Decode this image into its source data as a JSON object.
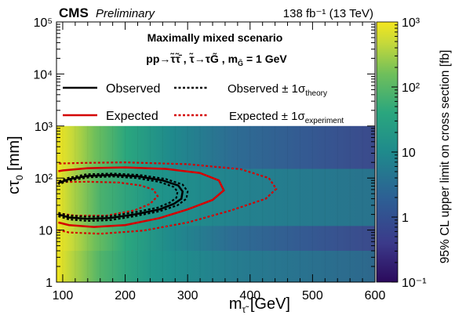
{
  "header": {
    "experiment": "CMS",
    "status": "Preliminary",
    "lumi_text": "138 fb⁻¹ (13 TeV)"
  },
  "legend": {
    "title": "Maximally mixed scenario",
    "process": "pp→τ̃τ̃̄ , τ̃→τG̃ , m",
    "process_sub": "G̃",
    "process_tail": " = 1 GeV",
    "observed": "Observed",
    "observed_band": "Observed ± 1σ",
    "observed_band_sub": "theory",
    "expected": "Expected",
    "expected_band": "Expected ± 1σ",
    "expected_band_sub": "experiment"
  },
  "colors": {
    "observed": "#000000",
    "expected": "#d40000",
    "palette": [
      "#2b0a5c",
      "#3b3a8a",
      "#2d5f94",
      "#1f8a8c",
      "#2aa67e",
      "#6fbf5b",
      "#c6d93a",
      "#f4e61e"
    ]
  },
  "chart_data": {
    "type": "heatmap",
    "title": "",
    "xlabel": "m",
    "xlabel_sub": "τ̃",
    "xlabel_unit": " [GeV]",
    "ylabel": "cτ",
    "ylabel_sub": "0",
    "ylabel_unit": " [mm]",
    "zlabel": "95% CL upper limit on cross section [fb]",
    "xlim": [
      90,
      600
    ],
    "ylim": [
      1,
      100000
    ],
    "zlim": [
      0.1,
      1000
    ],
    "ylog": true,
    "zlog": true,
    "grid": false,
    "x_ticks": [
      "100",
      "200",
      "300",
      "400",
      "500",
      "600"
    ],
    "y_ticks": [
      "1",
      "10",
      "10²",
      "10³",
      "10⁴",
      "10⁵"
    ],
    "z_ticks": [
      "10⁻¹",
      "1",
      "10",
      "10²",
      "10³"
    ],
    "heatmap_y_range": [
      1,
      1000
    ],
    "observed_contour": [
      [
        93,
        20
      ],
      [
        110,
        17.5
      ],
      [
        140,
        16.5
      ],
      [
        175,
        17
      ],
      [
        215,
        20
      ],
      [
        255,
        25
      ],
      [
        278,
        32
      ],
      [
        290,
        40
      ],
      [
        292,
        55
      ],
      [
        285,
        72
      ],
      [
        260,
        90
      ],
      [
        220,
        108
      ],
      [
        180,
        115
      ],
      [
        140,
        110
      ],
      [
        110,
        95
      ],
      [
        93,
        80
      ]
    ],
    "observed_plus": [
      [
        93,
        18.5
      ],
      [
        110,
        16
      ],
      [
        140,
        15
      ],
      [
        175,
        15.5
      ],
      [
        215,
        18.5
      ],
      [
        255,
        23
      ],
      [
        284,
        30
      ],
      [
        298,
        40
      ],
      [
        300,
        55
      ],
      [
        292,
        75
      ],
      [
        265,
        96
      ],
      [
        222,
        115
      ],
      [
        180,
        122
      ],
      [
        138,
        118
      ],
      [
        108,
        100
      ],
      [
        93,
        85
      ]
    ],
    "observed_minus": [
      [
        93,
        21.5
      ],
      [
        110,
        19
      ],
      [
        140,
        18
      ],
      [
        175,
        18.5
      ],
      [
        215,
        22
      ],
      [
        252,
        27
      ],
      [
        272,
        34
      ],
      [
        282,
        42
      ],
      [
        284,
        55
      ],
      [
        277,
        68
      ],
      [
        254,
        85
      ],
      [
        218,
        100
      ],
      [
        180,
        107
      ],
      [
        142,
        103
      ],
      [
        112,
        90
      ],
      [
        93,
        76
      ]
    ],
    "expected_contour": [
      [
        93,
        14
      ],
      [
        110,
        12.5
      ],
      [
        150,
        11.5
      ],
      [
        200,
        12.5
      ],
      [
        255,
        17
      ],
      [
        300,
        25
      ],
      [
        340,
        38
      ],
      [
        358,
        58
      ],
      [
        350,
        90
      ],
      [
        320,
        125
      ],
      [
        265,
        150
      ],
      [
        200,
        160
      ],
      [
        140,
        155
      ],
      [
        100,
        140
      ],
      [
        93,
        135
      ]
    ],
    "expected_plus": [
      [
        93,
        10
      ],
      [
        110,
        9
      ],
      [
        160,
        8.5
      ],
      [
        230,
        9.8
      ],
      [
        300,
        14
      ],
      [
        370,
        24
      ],
      [
        425,
        40
      ],
      [
        442,
        62
      ],
      [
        430,
        100
      ],
      [
        385,
        148
      ],
      [
        300,
        185
      ],
      [
        200,
        200
      ],
      [
        130,
        195
      ],
      [
        93,
        190
      ]
    ],
    "expected_minus": [
      [
        93,
        21
      ],
      [
        120,
        19
      ],
      [
        170,
        19
      ],
      [
        215,
        24
      ],
      [
        240,
        32
      ],
      [
        252,
        45
      ],
      [
        245,
        60
      ],
      [
        225,
        72
      ],
      [
        190,
        82
      ],
      [
        140,
        85
      ],
      [
        100,
        84
      ],
      [
        93,
        82
      ]
    ]
  }
}
